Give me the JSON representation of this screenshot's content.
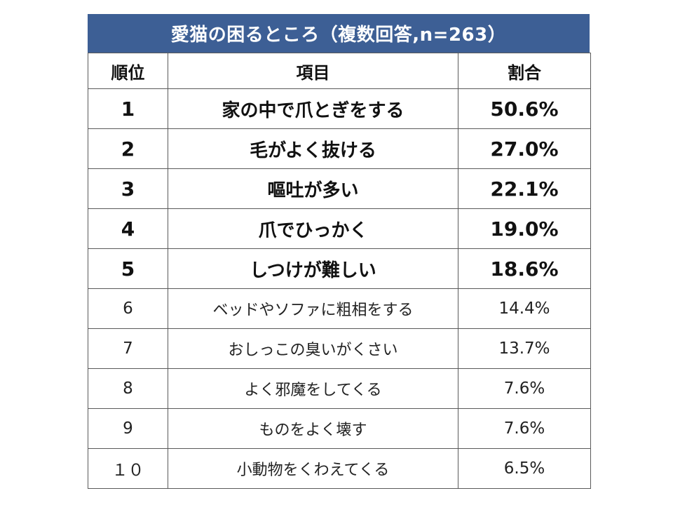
{
  "chart_data": {
    "type": "table",
    "title": "愛猫の困るところ（複数回答,n=263）",
    "columns": [
      "順位",
      "項目",
      "割合"
    ],
    "rows": [
      {
        "rank": "1",
        "item": "家の中で爪とぎをする",
        "percent": "50.6%",
        "value": 50.6,
        "emphasis": true
      },
      {
        "rank": "2",
        "item": "毛がよく抜ける",
        "percent": "27.0%",
        "value": 27.0,
        "emphasis": true
      },
      {
        "rank": "3",
        "item": "嘔吐が多い",
        "percent": "22.1%",
        "value": 22.1,
        "emphasis": true
      },
      {
        "rank": "4",
        "item": "爪でひっかく",
        "percent": "19.0%",
        "value": 19.0,
        "emphasis": true
      },
      {
        "rank": "5",
        "item": "しつけが難しい",
        "percent": "18.6%",
        "value": 18.6,
        "emphasis": true
      },
      {
        "rank": "6",
        "item": "ベッドやソファに粗相をする",
        "percent": "14.4%",
        "value": 14.4,
        "emphasis": false
      },
      {
        "rank": "7",
        "item": "おしっこの臭いがくさい",
        "percent": "13.7%",
        "value": 13.7,
        "emphasis": false
      },
      {
        "rank": "8",
        "item": "よく邪魔をしてくる",
        "percent": "7.6%",
        "value": 7.6,
        "emphasis": false
      },
      {
        "rank": "9",
        "item": "ものをよく壊す",
        "percent": "7.6%",
        "value": 7.6,
        "emphasis": false
      },
      {
        "rank": "１０",
        "item": "小動物をくわえてくる",
        "percent": "6.5%",
        "value": 6.5,
        "emphasis": false
      }
    ],
    "colors": {
      "title_background": "#3d5f95",
      "title_text": "#ffffff",
      "border": "#5a5a5a"
    }
  }
}
